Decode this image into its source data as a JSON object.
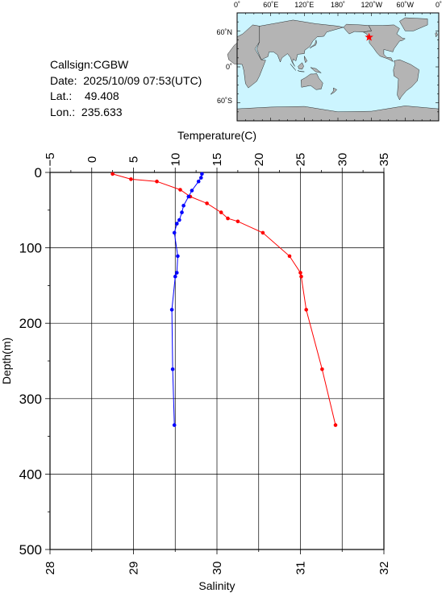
{
  "station": {
    "callsign_label": "Callsign:",
    "callsign": "CGBW",
    "date_label": "Date:",
    "date": "2025/10/09 07:53(UTC)",
    "lat_label": "Lat.:",
    "lat": "49.408",
    "lon_label": "Lon.:",
    "lon": "235.633"
  },
  "map": {
    "top_ticks": [
      "0˚",
      "60˚E",
      "120˚E",
      "180˚",
      "120˚W",
      "60˚W",
      "0˚"
    ],
    "left_ticks": [
      "60˚N",
      "0˚",
      "60˚S"
    ],
    "marker": {
      "lon": 235.633,
      "lat": 49.408
    },
    "ocean_color": "#ccf5ff",
    "land_color": "#b4b4b4",
    "marker_color": "#ff0000"
  },
  "chart_data": {
    "type": "line",
    "ylabel": "Depth(m)",
    "ylim": [
      0,
      500
    ],
    "y_ticks": [
      "0",
      "100",
      "200",
      "300",
      "400",
      "500"
    ],
    "top_axis": {
      "label": "Temperature(C)",
      "range": [
        -5,
        35
      ],
      "ticks": [
        "−5",
        "0",
        "5",
        "10",
        "15",
        "20",
        "25",
        "30",
        "35"
      ]
    },
    "bottom_axis": {
      "label": "Salinity",
      "range": [
        28,
        32
      ],
      "ticks": [
        "28",
        "29",
        "30",
        "31",
        "32"
      ]
    },
    "grid": true,
    "series": [
      {
        "axis": "top",
        "color": "#ff0000",
        "depth": [
          2,
          9,
          12,
          23,
          32,
          41,
          53,
          61,
          65,
          80,
          111,
          133,
          138,
          182,
          261,
          335
        ],
        "values": [
          2.5,
          4.7,
          7.8,
          10.6,
          11.8,
          13.8,
          15.5,
          16.3,
          17.5,
          20.5,
          23.7,
          25.0,
          25.1,
          25.7,
          27.6,
          29.2
        ]
      },
      {
        "axis": "bottom",
        "color": "#0000ff",
        "depth": [
          2,
          7,
          12,
          24,
          32,
          44,
          53,
          63,
          68,
          80,
          111,
          133,
          138,
          182,
          261,
          335
        ],
        "values": [
          29.82,
          29.81,
          29.78,
          29.7,
          29.66,
          29.6,
          29.58,
          29.55,
          29.52,
          29.49,
          29.53,
          29.52,
          29.5,
          29.46,
          29.47,
          29.49
        ]
      }
    ]
  }
}
